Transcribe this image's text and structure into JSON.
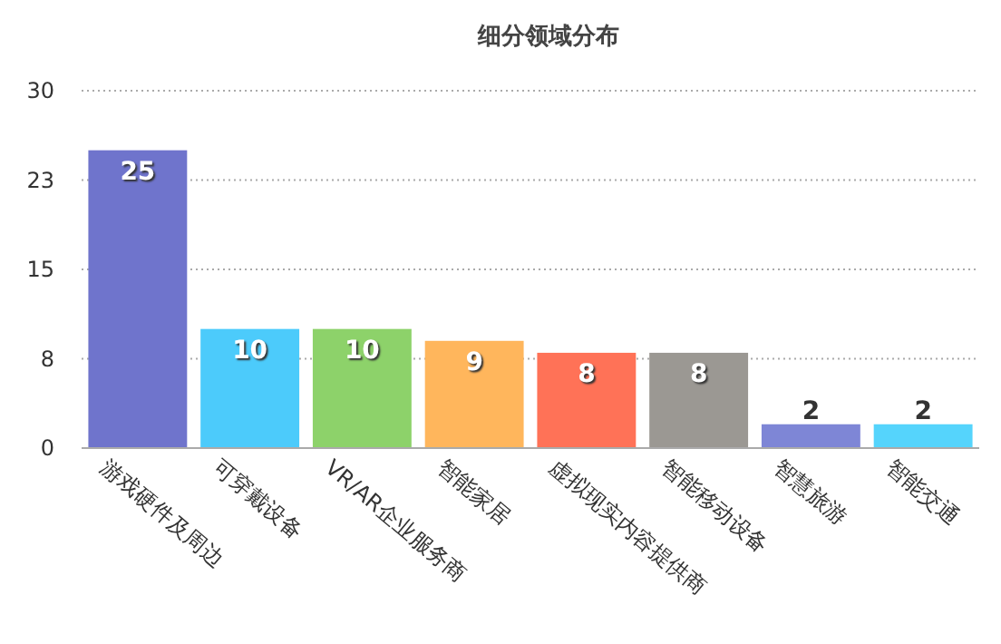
{
  "chart_data": {
    "type": "bar",
    "title": "细分领域分布",
    "categories": [
      "游戏硬件及周边",
      "可穿戴设备",
      "VR/AR企业服务商",
      "智能家居",
      "虚拟现实内容提供商",
      "智能移动设备",
      "智慧旅游",
      "智能交通"
    ],
    "values": [
      25,
      10,
      10,
      9,
      8,
      8,
      2,
      2
    ],
    "colors": [
      "#6f74cc",
      "#4ccbfb",
      "#8dd26a",
      "#ffb65c",
      "#ff7257",
      "#9b9893",
      "#7e86d6",
      "#55d4fc"
    ],
    "ylim": [
      0,
      30
    ],
    "yticks": [
      0,
      {
        "value": 7.5,
        "label": "8"
      },
      15,
      {
        "value": 22.5,
        "label": "23"
      },
      30
    ],
    "grid": "y",
    "data_labels": true
  }
}
